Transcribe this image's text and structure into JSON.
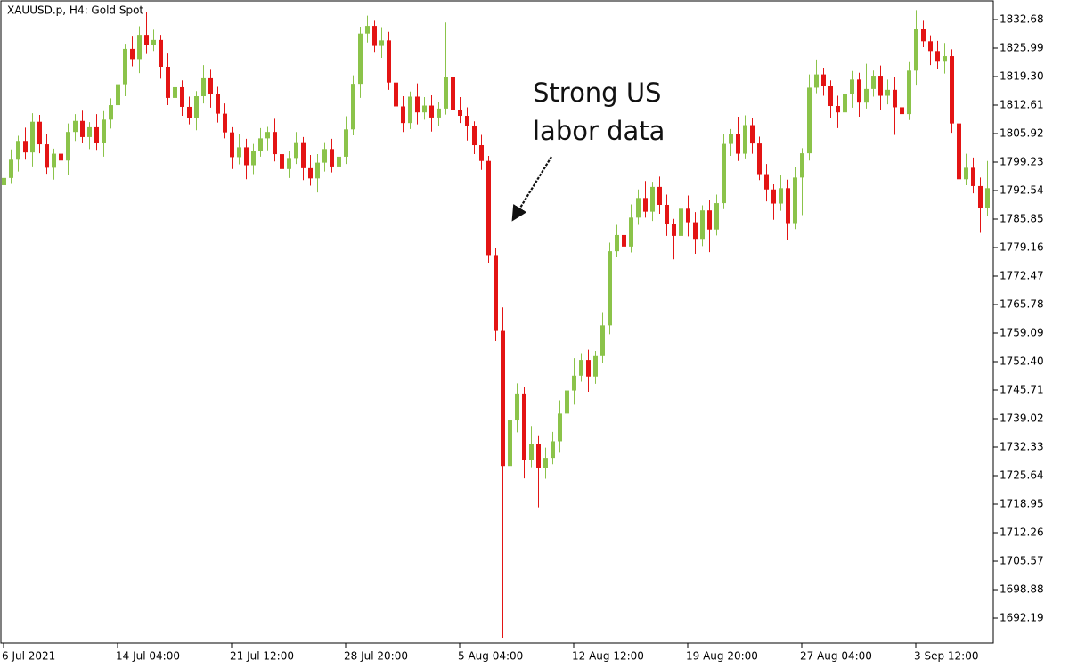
{
  "chart_data": {
    "type": "candlestick",
    "title": "XAUUSD.p, H4:  Gold Spot",
    "annotation": [
      "Strong US",
      "labor data"
    ],
    "up_color": "#8bc34a",
    "down_color": "#e31414",
    "grid": false,
    "ylim": [
      1686.34,
      1837.28
    ],
    "yticks": [
      1832.68,
      1825.99,
      {
        "value": 1819.3,
        "label": "1819.30"
      },
      1812.61,
      1805.92,
      1799.23,
      1792.54,
      1785.85,
      1779.16,
      1772.47,
      1765.78,
      1759.09,
      {
        "value": 1752.4,
        "label": "1752.40"
      },
      1745.71,
      1739.02,
      1732.33,
      1725.64,
      1718.95,
      1712.26,
      1705.57,
      1698.88,
      1692.19
    ],
    "categories": [
      "6 Jul 2021",
      null,
      null,
      null,
      null,
      null,
      null,
      null,
      null,
      null,
      null,
      null,
      null,
      null,
      null,
      null,
      "14 Jul 04:00",
      null,
      null,
      null,
      null,
      null,
      null,
      null,
      null,
      null,
      null,
      null,
      null,
      null,
      null,
      null,
      "21 Jul 12:00",
      null,
      null,
      null,
      null,
      null,
      null,
      null,
      null,
      null,
      null,
      null,
      null,
      null,
      null,
      null,
      "28 Jul 20:00",
      null,
      null,
      null,
      null,
      null,
      null,
      null,
      null,
      null,
      null,
      null,
      null,
      null,
      null,
      null,
      "5 Aug 04:00",
      null,
      null,
      null,
      null,
      null,
      null,
      null,
      null,
      null,
      null,
      null,
      null,
      null,
      null,
      null,
      "12 Aug 12:00",
      null,
      null,
      null,
      null,
      null,
      null,
      null,
      null,
      null,
      null,
      null,
      null,
      null,
      null,
      null,
      "19 Aug 20:00",
      null,
      null,
      null,
      null,
      null,
      null,
      null,
      null,
      null,
      null,
      null,
      null,
      null,
      null,
      null,
      "27 Aug 04:00",
      null,
      null,
      null,
      null,
      null,
      null,
      null,
      null,
      null,
      null,
      null,
      null,
      null,
      null,
      null,
      "3 Sep 12:00",
      null,
      null,
      null,
      null,
      null,
      null,
      null,
      null,
      null,
      null
    ],
    "open": [
      1793.8,
      1795.5,
      1799.8,
      1804.2,
      1801.5,
      1808.7,
      1803.4,
      1797.9,
      1801.2,
      1799.6,
      1806.3,
      1808.9,
      1805.1,
      1807.4,
      1803.8,
      1809.2,
      1812.6,
      1817.5,
      1825.8,
      1823.4,
      1829.1,
      1826.7,
      1827.9,
      1821.6,
      1814.3,
      1816.8,
      1812.2,
      1809.5,
      1814.7,
      1818.9,
      1815.3,
      1810.6,
      1806.2,
      1800.4,
      1802.7,
      1798.5,
      1801.9,
      1804.8,
      1806.3,
      1801.1,
      1797.6,
      1800.2,
      1803.9,
      1797.8,
      1795.4,
      1799.1,
      1802.3,
      1798.2,
      1800.5,
      1806.9,
      1817.6,
      1829.4,
      1831.2,
      1826.5,
      1827.8,
      1817.9,
      1812.3,
      1808.4,
      1814.6,
      1810.9,
      1812.5,
      1809.7,
      1811.8,
      1819.2,
      1811.4,
      1810.1,
      1807.6,
      1803.2,
      1799.5,
      1777.4,
      1759.6,
      1727.9,
      1738.6,
      1744.9,
      1729.3,
      1733.1,
      1727.4,
      1729.8,
      1733.7,
      1740.2,
      1745.6,
      1749.1,
      1752.8,
      1748.9,
      1753.7,
      1760.9,
      1778.3,
      1782.1,
      1779.4,
      1786.2,
      1790.8,
      1787.6,
      1793.4,
      1789.2,
      1784.7,
      1781.9,
      1788.3,
      1785.1,
      1781.2,
      1787.9,
      1783.4,
      1789.6,
      1803.5,
      1805.8,
      1801.2,
      1807.9,
      1803.6,
      1796.4,
      1792.8,
      1789.5,
      1793.1,
      1784.9,
      1795.6,
      1801.3,
      1816.7,
      1819.8,
      1817.2,
      1812.4,
      1810.9,
      1815.3,
      1818.6,
      1813.2,
      1816.4,
      1819.5,
      1814.8,
      1816.2,
      1812.1,
      1810.5,
      1820.7,
      1830.4,
      1827.6,
      1825.3,
      1822.8,
      1824.1,
      1808.3,
      1795.2,
      1797.9,
      1793.6,
      1788.4
    ],
    "high": [
      1797.1,
      1802.2,
      1805.4,
      1807.3,
      1810.7,
      1810.3,
      1805.8,
      1802.4,
      1804.3,
      1808.3,
      1810.5,
      1811.3,
      1808.6,
      1810.5,
      1811.2,
      1814.2,
      1819.9,
      1827.0,
      1828.9,
      1831.1,
      1834.4,
      1830.3,
      1829.1,
      1824.7,
      1818.8,
      1818.4,
      1814.6,
      1815.9,
      1822.0,
      1820.9,
      1816.9,
      1813.0,
      1807.4,
      1805.8,
      1804.7,
      1803.5,
      1807.2,
      1807.5,
      1809.4,
      1803.1,
      1801.8,
      1806.3,
      1805.1,
      1800.9,
      1801.1,
      1803.9,
      1804.7,
      1801.7,
      1810.0,
      1819.6,
      1831.0,
      1833.6,
      1832.4,
      1830.9,
      1829.8,
      1819.5,
      1814.7,
      1815.8,
      1817.7,
      1814.5,
      1814.9,
      1813.4,
      1832.0,
      1820.4,
      1814.5,
      1812.1,
      1808.8,
      1805.6,
      1800.7,
      1779.0,
      1765.1,
      1751.2,
      1747.3,
      1746.5,
      1737.3,
      1735.1,
      1732.2,
      1735.9,
      1743.3,
      1747.6,
      1753.2,
      1754.4,
      1755.2,
      1754.9,
      1764.0,
      1780.3,
      1784.5,
      1783.3,
      1789.3,
      1792.8,
      1794.8,
      1794.6,
      1795.8,
      1791.6,
      1785.9,
      1790.3,
      1791.4,
      1787.5,
      1789.1,
      1790.3,
      1791.6,
      1805.9,
      1807.0,
      1809.9,
      1810.2,
      1809.5,
      1805.2,
      1798.8,
      1794.0,
      1796.2,
      1795.1,
      1798.0,
      1802.5,
      1819.8,
      1823.3,
      1821.4,
      1818.4,
      1814.8,
      1818.4,
      1820.6,
      1820.2,
      1822.3,
      1820.7,
      1821.9,
      1818.6,
      1819.3,
      1813.7,
      1822.7,
      1834.9,
      1832.4,
      1829.0,
      1827.7,
      1827.2,
      1825.7,
      1809.5,
      1801.2,
      1800.3,
      1795.6,
      1799.5
    ],
    "low": [
      1791.7,
      1794.1,
      1797.0,
      1799.8,
      1798.2,
      1801.3,
      1796.5,
      1795.1,
      1797.9,
      1796.3,
      1804.2,
      1803.7,
      1802.3,
      1802.1,
      1800.5,
      1807.1,
      1811.2,
      1814.7,
      1821.7,
      1820.1,
      1824.6,
      1825.3,
      1818.8,
      1812.6,
      1811.0,
      1810.1,
      1808.1,
      1806.7,
      1813.0,
      1812.0,
      1808.5,
      1804.8,
      1797.6,
      1798.7,
      1795.2,
      1796.4,
      1800.5,
      1802.0,
      1799.4,
      1794.3,
      1795.5,
      1798.8,
      1795.0,
      1793.7,
      1792.1,
      1797.0,
      1796.8,
      1795.4,
      1798.8,
      1805.5,
      1814.3,
      1827.3,
      1825.1,
      1823.7,
      1816.2,
      1809.0,
      1806.3,
      1807.0,
      1808.1,
      1809.2,
      1806.4,
      1807.6,
      1810.4,
      1808.6,
      1808.4,
      1804.3,
      1801.1,
      1797.4,
      1775.6,
      1757.2,
      1687.6,
      1726.1,
      1735.8,
      1725.0,
      1727.6,
      1718.2,
      1724.9,
      1728.3,
      1731.0,
      1738.5,
      1742.3,
      1747.7,
      1745.3,
      1747.2,
      1752.0,
      1758.8,
      1776.9,
      1774.9,
      1778.0,
      1784.5,
      1786.2,
      1785.4,
      1787.1,
      1781.9,
      1776.4,
      1779.8,
      1781.8,
      1777.7,
      1779.5,
      1778.1,
      1782.0,
      1788.2,
      1800.7,
      1799.5,
      1800.1,
      1801.2,
      1795.0,
      1790.0,
      1785.7,
      1787.8,
      1780.9,
      1783.5,
      1786.8,
      1799.6,
      1815.4,
      1814.8,
      1809.6,
      1807.2,
      1809.2,
      1812.0,
      1809.9,
      1811.8,
      1814.6,
      1811.5,
      1812.8,
      1805.6,
      1808.4,
      1809.1,
      1817.4,
      1826.2,
      1822.0,
      1821.1,
      1820.0,
      1806.1,
      1792.4,
      1793.8,
      1791.9,
      1782.6,
      1786.7
    ],
    "close": [
      1795.5,
      1799.8,
      1804.2,
      1801.5,
      1808.7,
      1803.4,
      1797.9,
      1801.2,
      1799.6,
      1806.3,
      1808.9,
      1805.1,
      1807.4,
      1803.8,
      1809.2,
      1812.6,
      1817.5,
      1825.8,
      1823.4,
      1829.1,
      1826.7,
      1827.9,
      1821.6,
      1814.3,
      1816.8,
      1812.2,
      1809.5,
      1814.7,
      1818.9,
      1815.3,
      1810.6,
      1806.2,
      1800.4,
      1802.7,
      1798.5,
      1801.9,
      1804.8,
      1806.3,
      1801.1,
      1797.6,
      1800.2,
      1803.9,
      1797.8,
      1795.4,
      1799.1,
      1802.3,
      1798.2,
      1800.5,
      1806.9,
      1817.6,
      1829.4,
      1831.2,
      1826.5,
      1827.8,
      1817.9,
      1812.3,
      1808.4,
      1814.6,
      1810.9,
      1812.5,
      1809.7,
      1811.8,
      1819.2,
      1811.4,
      1810.1,
      1807.6,
      1803.2,
      1799.5,
      1777.4,
      1759.6,
      1727.9,
      1738.6,
      1744.9,
      1729.3,
      1733.1,
      1727.4,
      1729.8,
      1733.7,
      1740.2,
      1745.6,
      1749.1,
      1752.8,
      1748.9,
      1753.7,
      1760.9,
      1778.3,
      1782.1,
      1779.4,
      1786.2,
      1790.8,
      1787.6,
      1793.4,
      1789.2,
      1784.7,
      1781.9,
      1788.3,
      1785.1,
      1781.2,
      1787.9,
      1783.4,
      1789.6,
      1803.5,
      1805.8,
      1801.2,
      1807.9,
      1803.6,
      1796.4,
      1792.8,
      1789.5,
      1793.1,
      1784.9,
      1795.6,
      1801.3,
      1816.7,
      1819.8,
      1817.2,
      1812.4,
      1810.9,
      1815.3,
      1818.6,
      1813.2,
      1816.4,
      1819.5,
      1814.8,
      1816.2,
      1812.1,
      1810.5,
      1820.7,
      1830.4,
      1827.6,
      1825.3,
      1822.8,
      1824.1,
      1808.3,
      1795.2,
      1797.9,
      1793.6,
      1788.4,
      1793.1
    ]
  }
}
